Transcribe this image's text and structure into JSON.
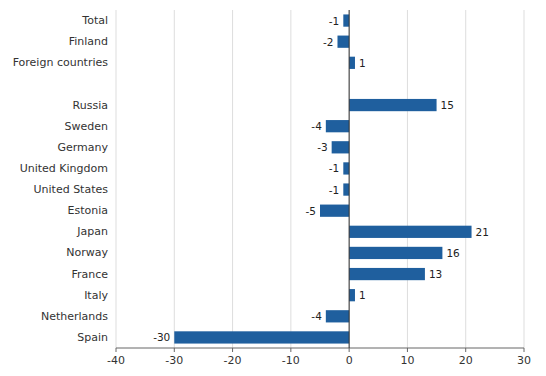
{
  "chart_data": {
    "type": "bar",
    "orientation": "horizontal",
    "categories": [
      "Total",
      "Finland",
      "Foreign countries",
      null,
      "Russia",
      "Sweden",
      "Germany",
      "United Kingdom",
      "United States",
      "Estonia",
      "Japan",
      "Norway",
      "France",
      "Italy",
      "Netherlands",
      "Spain"
    ],
    "values": [
      -1,
      -2,
      1,
      null,
      15,
      -4,
      -3,
      -1,
      -1,
      -5,
      21,
      16,
      13,
      1,
      -4,
      -30
    ],
    "color": "#1f5f9e",
    "xlim": [
      -40,
      30
    ],
    "xticks": [
      -40,
      -30,
      -20,
      -10,
      0,
      10,
      20,
      30
    ],
    "grid": true,
    "data_labels": true
  }
}
